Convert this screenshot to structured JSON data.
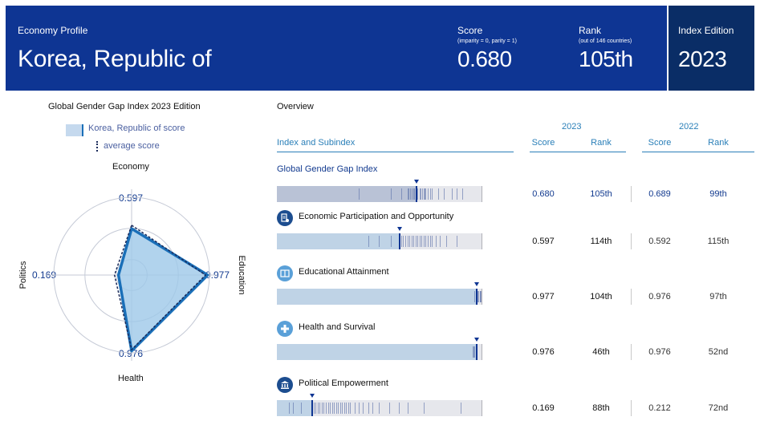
{
  "header": {
    "profile_label": "Economy Profile",
    "country": "Korea, Republic of",
    "score_label": "Score",
    "score_note": "(imparity = 0, parity = 1)",
    "score_value": "0.680",
    "rank_label": "Rank",
    "rank_note": "(out of 146 countries)",
    "rank_value": "105th",
    "edition_label": "Index Edition",
    "edition_value": "2023"
  },
  "radar": {
    "title_bold": "Global Gender Gap Index",
    "title_rest": " 2023 Edition",
    "legend_country": "Korea, Republic of score",
    "legend_average": "average score",
    "axes": {
      "economy": {
        "label": "Economy",
        "value": "0.597"
      },
      "education": {
        "label": "Education",
        "value": "0.977"
      },
      "health": {
        "label": "Health",
        "value": "0.976"
      },
      "politics": {
        "label": "Politics",
        "value": "0.169"
      }
    },
    "country_scores": {
      "economy": 0.597,
      "education": 0.977,
      "health": 0.976,
      "politics": 0.169
    },
    "average_scores": {
      "economy": 0.64,
      "education": 0.95,
      "health": 0.96,
      "politics": 0.22
    },
    "colors": {
      "fill": "#9ec8e8",
      "stroke": "#1a6fb8",
      "average": "#1a2a5a",
      "grid": "#c5cad6"
    }
  },
  "overview": {
    "title": "Overview",
    "year_current": "2023",
    "year_previous": "2022",
    "col_index": "Index and Subindex",
    "col_score": "Score",
    "col_rank": "Rank",
    "col_score_prev": "Score",
    "col_rank_prev": "Rank",
    "rows": [
      {
        "key": "ggg",
        "title": "Global Gender Gap Index",
        "score": "0.680",
        "rank": "105th",
        "score_prev": "0.689",
        "rank_prev": "99th",
        "value": 0.68,
        "icon": ""
      },
      {
        "key": "econ",
        "title": "Economic Participation and Opportunity",
        "score": "0.597",
        "rank": "114th",
        "score_prev": "0.592",
        "rank_prev": "115th",
        "value": 0.597,
        "icon": "briefcase-icon"
      },
      {
        "key": "edu",
        "title": "Educational Attainment",
        "score": "0.977",
        "rank": "104th",
        "score_prev": "0.976",
        "rank_prev": "97th",
        "value": 0.977,
        "icon": "book-icon"
      },
      {
        "key": "health",
        "title": "Health and Survival",
        "score": "0.976",
        "rank": "46th",
        "score_prev": "0.976",
        "rank_prev": "52nd",
        "value": 0.976,
        "icon": "health-cross-icon"
      },
      {
        "key": "pol",
        "title": "Political Empowerment",
        "score": "0.169",
        "rank": "88th",
        "score_prev": "0.212",
        "rank_prev": "72nd",
        "value": 0.169,
        "icon": "government-building-icon"
      }
    ],
    "distributions": {
      "ggg": [
        0.64,
        0.645,
        0.652,
        0.66,
        0.668,
        0.675,
        0.68,
        0.69,
        0.7,
        0.705,
        0.712,
        0.72,
        0.725,
        0.73,
        0.74,
        0.75,
        0.76,
        0.79,
        0.82,
        0.86,
        0.88,
        0.91,
        0.61,
        0.56,
        0.4
      ],
      "econ": [
        0.6,
        0.61,
        0.62,
        0.63,
        0.64,
        0.65,
        0.66,
        0.67,
        0.68,
        0.69,
        0.7,
        0.71,
        0.72,
        0.73,
        0.74,
        0.75,
        0.76,
        0.78,
        0.8,
        0.83,
        0.88,
        0.56,
        0.5,
        0.45
      ],
      "edu": [
        0.99,
        0.995,
        1.0,
        0.985,
        0.998,
        0.97
      ],
      "health": [
        0.96,
        0.965,
        0.97,
        0.975,
        0.98
      ],
      "pol": [
        0.18,
        0.19,
        0.2,
        0.21,
        0.22,
        0.23,
        0.24,
        0.25,
        0.26,
        0.27,
        0.28,
        0.29,
        0.3,
        0.31,
        0.32,
        0.33,
        0.34,
        0.35,
        0.36,
        0.38,
        0.4,
        0.42,
        0.45,
        0.47,
        0.5,
        0.55,
        0.6,
        0.64,
        0.72,
        0.9,
        0.08,
        0.06,
        0.12
      ]
    },
    "colors": {
      "marker": "#0e3593",
      "icon_bg": "#1c4d8f",
      "icon_light_bg": "#5aa0d8"
    }
  }
}
